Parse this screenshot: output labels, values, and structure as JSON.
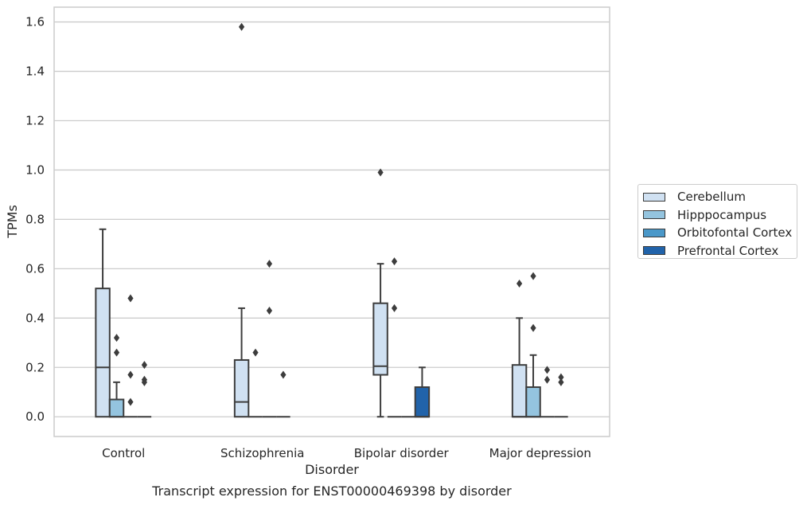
{
  "chart_data": {
    "type": "box",
    "caption": "Transcript expression for ENST00000469398 by disorder",
    "xlabel": "Disorder",
    "ylabel": "TPMs",
    "ylim": [
      -0.08,
      1.66
    ],
    "yticks": [
      "0.0",
      "0.2",
      "0.4",
      "0.6",
      "0.8",
      "1.0",
      "1.2",
      "1.4",
      "1.6"
    ],
    "categories": [
      "Control",
      "Schizophrenia",
      "Bipolar disorder",
      "Major depression"
    ],
    "grid": true,
    "legend_position": "right",
    "series": [
      {
        "name": "Cerebellum",
        "color": "#d0e1f2",
        "boxes": [
          {
            "min": 0.0,
            "q1": 0.0,
            "median": 0.2,
            "q3": 0.52,
            "max": 0.76,
            "outliers": []
          },
          {
            "min": 0.0,
            "q1": 0.0,
            "median": 0.06,
            "q3": 0.23,
            "max": 0.44,
            "outliers": [
              1.58
            ]
          },
          {
            "min": 0.0,
            "q1": 0.17,
            "median": 0.205,
            "q3": 0.46,
            "max": 0.62,
            "outliers": [
              0.99
            ]
          },
          {
            "min": 0.0,
            "q1": 0.0,
            "median": 0.0,
            "q3": 0.21,
            "max": 0.4,
            "outliers": [
              0.54
            ]
          }
        ]
      },
      {
        "name": "Hipppocampus",
        "color": "#94c4df",
        "boxes": [
          {
            "min": 0.0,
            "q1": 0.0,
            "median": 0.0,
            "q3": 0.07,
            "max": 0.14,
            "outliers": [
              0.32,
              0.26
            ]
          },
          {
            "min": 0.0,
            "q1": 0.0,
            "median": 0.0,
            "q3": 0.0,
            "max": 0.0,
            "outliers": [
              0.26
            ]
          },
          {
            "min": 0.0,
            "q1": 0.0,
            "median": 0.0,
            "q3": 0.0,
            "max": 0.0,
            "outliers": [
              0.63,
              0.44
            ]
          },
          {
            "min": 0.0,
            "q1": 0.0,
            "median": 0.0,
            "q3": 0.12,
            "max": 0.25,
            "outliers": [
              0.57,
              0.36
            ]
          }
        ]
      },
      {
        "name": "Orbitofontal Cortex",
        "color": "#4a98c9",
        "boxes": [
          {
            "min": 0.0,
            "q1": 0.0,
            "median": 0.0,
            "q3": 0.0,
            "max": 0.0,
            "outliers": [
              0.48,
              0.17,
              0.06
            ]
          },
          {
            "min": 0.0,
            "q1": 0.0,
            "median": 0.0,
            "q3": 0.0,
            "max": 0.0,
            "outliers": [
              0.62,
              0.43
            ]
          },
          {
            "min": 0.0,
            "q1": 0.0,
            "median": 0.0,
            "q3": 0.0,
            "max": 0.0,
            "outliers": []
          },
          {
            "min": 0.0,
            "q1": 0.0,
            "median": 0.0,
            "q3": 0.0,
            "max": 0.0,
            "outliers": [
              0.19,
              0.15
            ]
          }
        ]
      },
      {
        "name": "Prefrontal Cortex",
        "color": "#2163aa",
        "boxes": [
          {
            "min": 0.0,
            "q1": 0.0,
            "median": 0.0,
            "q3": 0.0,
            "max": 0.0,
            "outliers": [
              0.21,
              0.15,
              0.14
            ]
          },
          {
            "min": 0.0,
            "q1": 0.0,
            "median": 0.0,
            "q3": 0.0,
            "max": 0.0,
            "outliers": [
              0.17
            ]
          },
          {
            "min": 0.0,
            "q1": 0.0,
            "median": 0.0,
            "q3": 0.12,
            "max": 0.2,
            "outliers": []
          },
          {
            "min": 0.0,
            "q1": 0.0,
            "median": 0.0,
            "q3": 0.0,
            "max": 0.0,
            "outliers": [
              0.16,
              0.14
            ]
          }
        ]
      }
    ]
  }
}
